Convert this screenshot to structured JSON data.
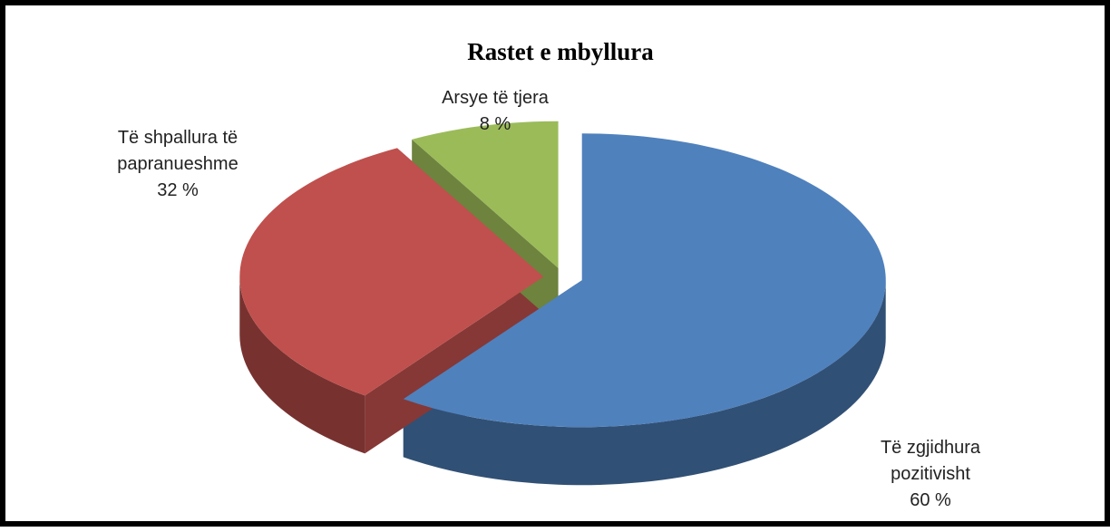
{
  "chart_data": {
    "type": "pie",
    "title": "Rastet e mbyllura",
    "categories": [
      "Të zgjidhura pozitivisht",
      "Të shpallura të papranueshme",
      "Arsye të tjera"
    ],
    "values": [
      60,
      32,
      8
    ],
    "value_labels": [
      "60 %",
      "32 %",
      "8 %"
    ],
    "colors": [
      "#4f81bd",
      "#c0504d",
      "#9bbb59"
    ]
  }
}
